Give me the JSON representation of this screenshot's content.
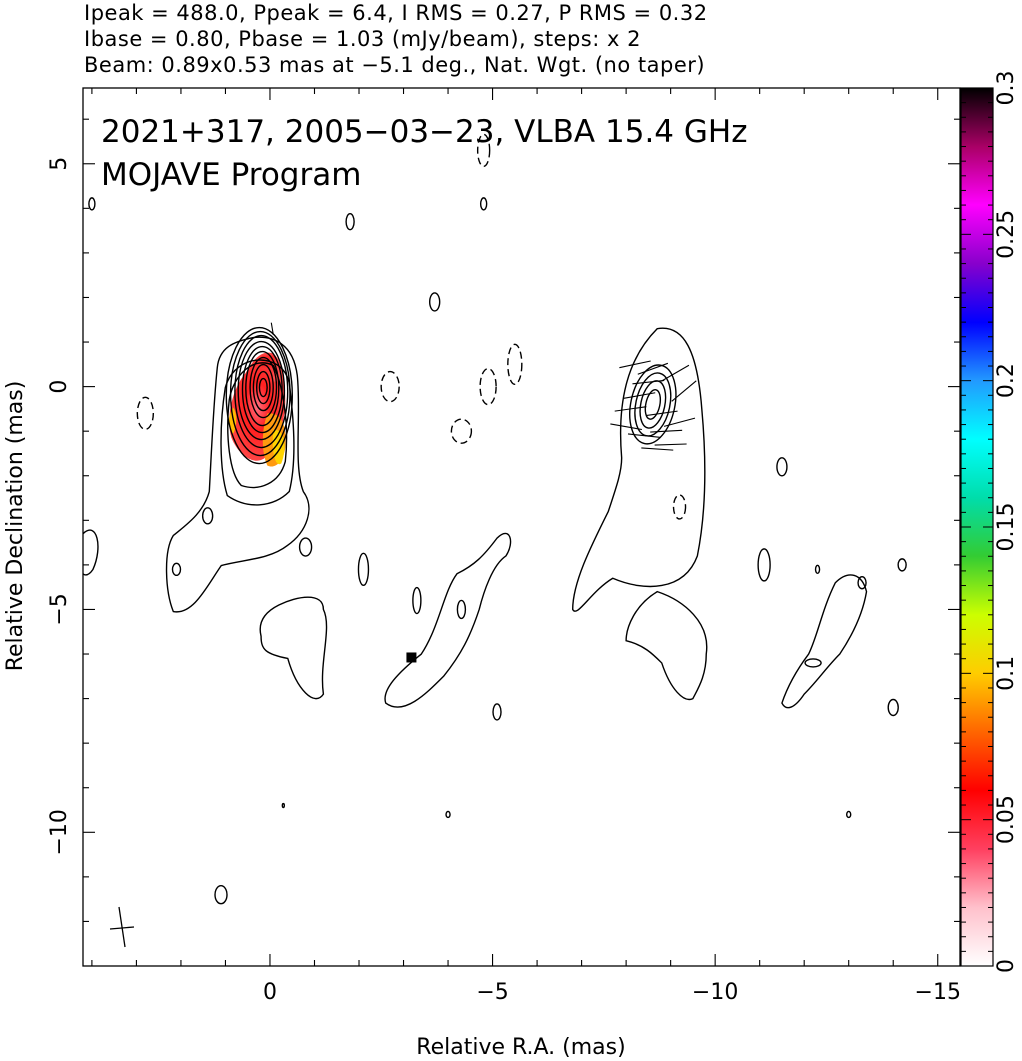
{
  "header": {
    "line1": "Ipeak = 488.0, Ppeak = 6.4, I RMS = 0.27, P RMS = 0.32",
    "line2": "Ibase = 0.80, Pbase = 1.03 (mJy/beam), steps: x 2",
    "line3": "Beam: 0.89x0.53 mas at −5.1 deg., Nat. Wgt. (no taper)"
  },
  "chart_data": {
    "type": "heatmap",
    "title": "2021+317, 2005−03−23, VLBA 15.4 GHz",
    "subtitle": "MOJAVE Program",
    "xlabel": "Relative R.A. (mas)",
    "ylabel": "Relative Declination (mas)",
    "xlim": [
      4.2,
      -15.5
    ],
    "ylim": [
      -13.0,
      6.7
    ],
    "x_ticks": [
      0,
      -5,
      -10,
      -15
    ],
    "x_tick_labels": [
      "0",
      "−5",
      "−10",
      "−15"
    ],
    "y_ticks": [
      5,
      0,
      -5,
      -10
    ],
    "y_tick_labels": [
      "5",
      "0",
      "−5",
      "−10"
    ],
    "colorbar": {
      "min": 0,
      "max": 0.3,
      "ticks": [
        0,
        0.05,
        0.1,
        0.15,
        0.2,
        0.25,
        0.3
      ],
      "tick_labels": [
        "0",
        "0.05",
        "0.1",
        "0.15",
        "0.2",
        "0.25",
        "0.3"
      ]
    },
    "colormap": [
      "#ffffff",
      "#ffc0cb",
      "#ff4060",
      "#ff0000",
      "#ff6600",
      "#ffcc00",
      "#ccff00",
      "#33cc33",
      "#00ddaa",
      "#00ffff",
      "#2299ff",
      "#0000ff",
      "#8800cc",
      "#ff00ff",
      "#aa0066",
      "#000000"
    ],
    "core": {
      "x": 0.15,
      "y": -0.2
    },
    "knot": {
      "x": -8.6,
      "y": -0.4
    },
    "beam": {
      "major": 0.89,
      "minor": 0.53,
      "pa": -5.1
    }
  }
}
